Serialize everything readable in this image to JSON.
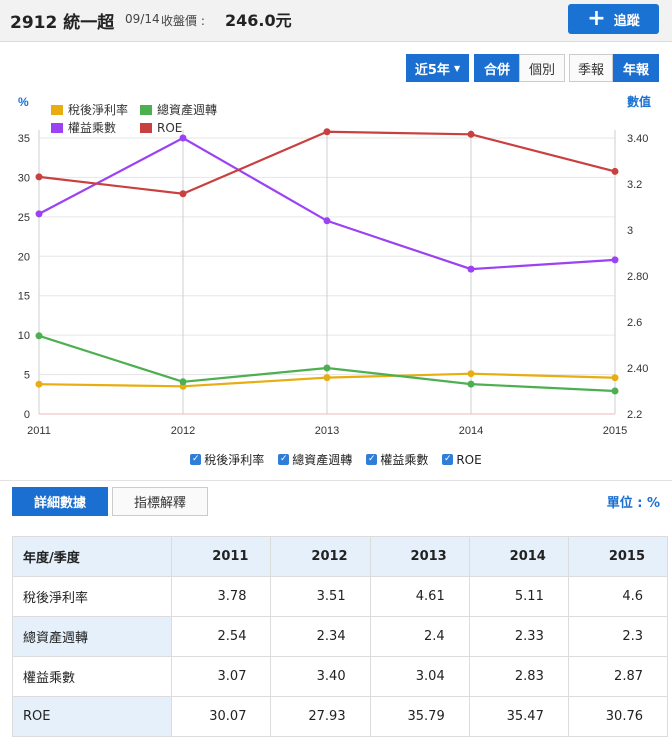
{
  "header": {
    "title": "2912 統一超",
    "date": "09/14",
    "price_label": "收盤價 :",
    "price": "246.0元",
    "follow_label": "追蹤"
  },
  "controls": {
    "period": "近5年",
    "merge": "合併",
    "single": "個別",
    "quarter": "季報",
    "annual": "年報"
  },
  "tabs": {
    "detail": "詳細數據",
    "explain": "指標解釋"
  },
  "unit_label": "單位 : %",
  "table": {
    "corner": "年度/季度",
    "years": [
      "2011",
      "2012",
      "2013",
      "2014",
      "2015"
    ],
    "rows": [
      {
        "label": "稅後淨利率",
        "values": [
          "3.78",
          "3.51",
          "4.61",
          "5.11",
          "4.6"
        ]
      },
      {
        "label": "總資產週轉",
        "values": [
          "2.54",
          "2.34",
          "2.4",
          "2.33",
          "2.3"
        ]
      },
      {
        "label": "權益乘數",
        "values": [
          "3.07",
          "3.40",
          "3.04",
          "2.83",
          "2.87"
        ]
      },
      {
        "label": "ROE",
        "values": [
          "30.07",
          "27.93",
          "35.79",
          "35.47",
          "30.76"
        ]
      }
    ]
  },
  "chart_data": {
    "type": "line",
    "x": [
      "2011",
      "2012",
      "2013",
      "2014",
      "2015"
    ],
    "left_axis": {
      "label": "%",
      "ticks": [
        "0",
        "5",
        "10",
        "15",
        "20",
        "25",
        "30",
        "35"
      ],
      "ylim": [
        0,
        35
      ]
    },
    "right_axis": {
      "label": "數值",
      "ticks": [
        "2.2",
        "2.40",
        "2.6",
        "2.80",
        "3",
        "3.2",
        "3.40"
      ],
      "ylim": [
        2.2,
        3.4
      ]
    },
    "series": [
      {
        "name": "稅後淨利率",
        "axis": "left",
        "color": "#e8ad10",
        "values": [
          3.78,
          3.51,
          4.61,
          5.11,
          4.6
        ]
      },
      {
        "name": "總資產週轉",
        "axis": "right",
        "color": "#4caf50",
        "values": [
          2.54,
          2.34,
          2.4,
          2.33,
          2.3
        ]
      },
      {
        "name": "權益乘數",
        "axis": "right",
        "color": "#9b42f4",
        "values": [
          3.07,
          3.4,
          3.04,
          2.83,
          2.87
        ]
      },
      {
        "name": "ROE",
        "axis": "left",
        "color": "#c94040",
        "values": [
          30.07,
          27.93,
          35.79,
          35.47,
          30.76
        ]
      }
    ],
    "grid": true,
    "legend_position": "top-left"
  }
}
